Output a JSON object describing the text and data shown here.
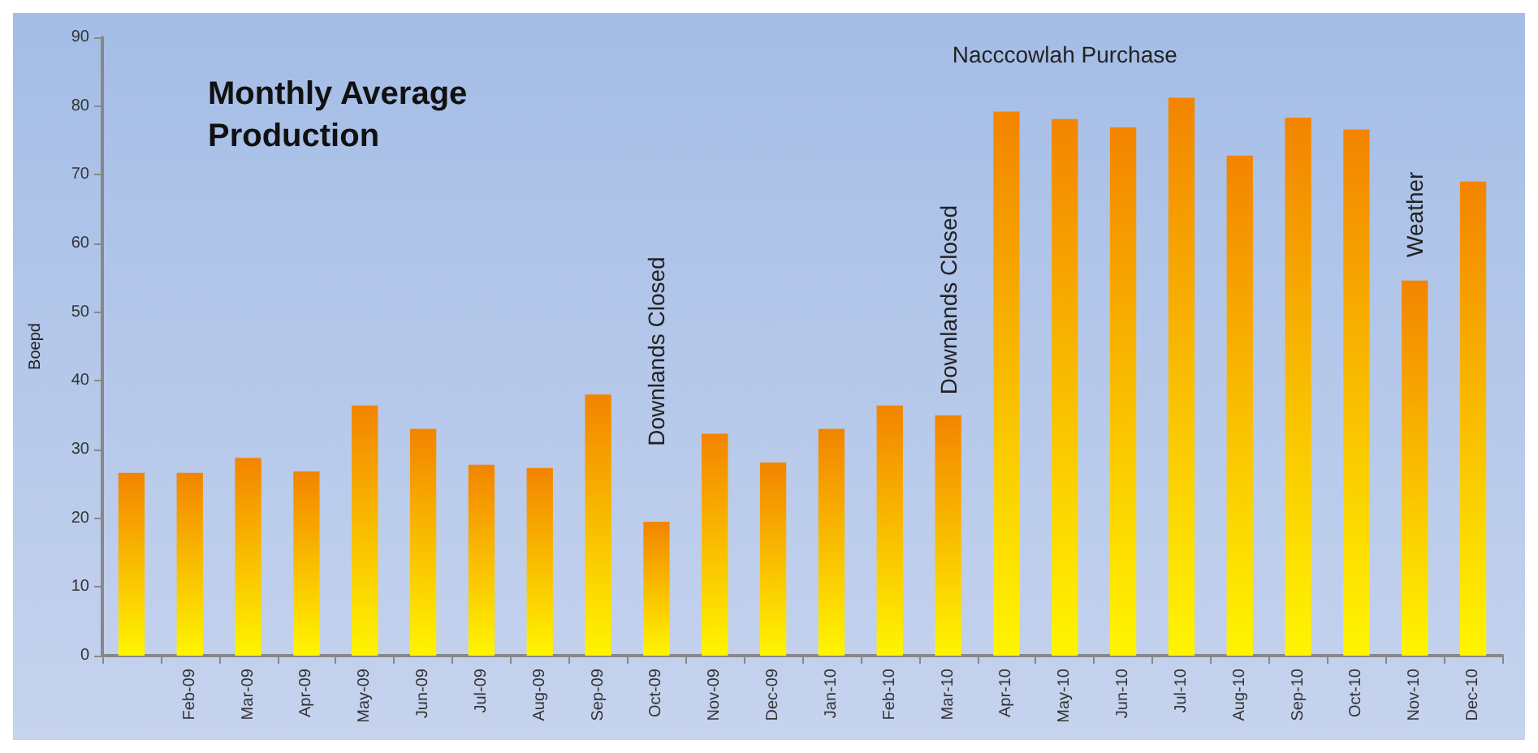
{
  "chart_data": {
    "type": "bar",
    "title": "Monthly Average Production",
    "ylabel": "Boepd",
    "categories": [
      null,
      "Feb-09",
      "Mar-09",
      "Apr-09",
      "May-09",
      "Jun-09",
      "Jul-09",
      "Aug-09",
      "Sep-09",
      "Oct-09",
      "Nov-09",
      "Dec-09",
      "Jan-10",
      "Feb-10",
      "Mar-10",
      "Apr-10",
      "May-10",
      "Jun-10",
      "Jul-10",
      "Aug-10",
      "Sep-10",
      "Oct-10",
      "Nov-10",
      "Dec-10"
    ],
    "values": [
      26.6,
      26.6,
      28.8,
      26.8,
      36.4,
      33,
      27.8,
      27.3,
      38,
      19.5,
      32.3,
      28.1,
      33,
      36.4,
      35,
      79.2,
      78.1,
      76.9,
      81.2,
      72.8,
      78.3,
      76.6,
      54.6,
      69
    ],
    "color": "#f38400",
    "ylim": [
      0,
      90
    ],
    "yticks": [
      0,
      10,
      20,
      30,
      40,
      50,
      60,
      70,
      80,
      90
    ],
    "grid": false,
    "annotations": [
      "Downlands Closed",
      "Downlands Closed",
      "Nacccowlah Purchase",
      "Weather"
    ]
  }
}
